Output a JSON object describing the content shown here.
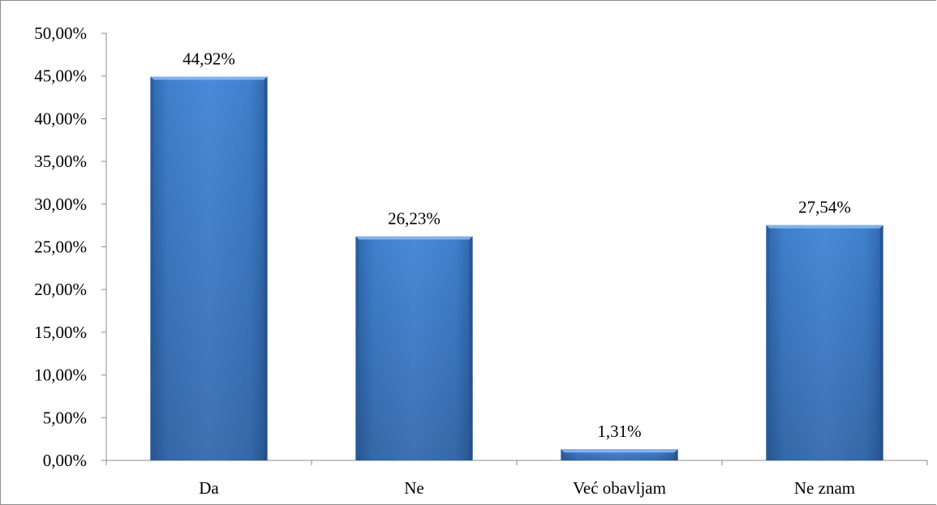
{
  "chart_data": {
    "type": "bar",
    "title": "",
    "xlabel": "",
    "ylabel": "",
    "categories": [
      "Da",
      "Ne",
      "Već obavljam",
      "Ne znam"
    ],
    "values": [
      44.92,
      26.23,
      1.31,
      27.54
    ],
    "data_labels": [
      "44,92%",
      "26,23%",
      "1,31%",
      "27,54%"
    ],
    "ylim": [
      0,
      50
    ],
    "yticks": [
      0,
      5,
      10,
      15,
      20,
      25,
      30,
      35,
      40,
      45,
      50
    ],
    "ytick_labels": [
      "0,00%",
      "5,00%",
      "10,00%",
      "15,00%",
      "20,00%",
      "25,00%",
      "30,00%",
      "35,00%",
      "40,00%",
      "45,00%",
      "50,00%"
    ],
    "grid": false,
    "legend": "none",
    "colors": {
      "bar_light": "#4a8ad8",
      "bar_mid": "#3b77c2",
      "bar_dark": "#2a5a9a",
      "axis": "#8c8c8c"
    }
  }
}
